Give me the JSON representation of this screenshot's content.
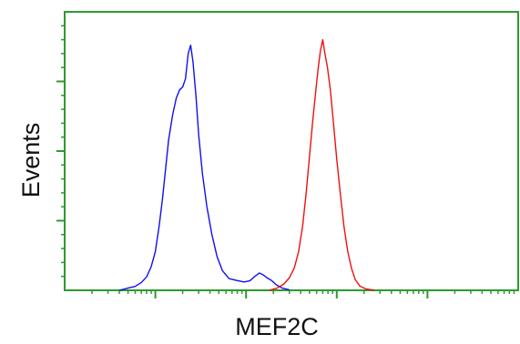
{
  "chart_data": {
    "type": "line",
    "title": "",
    "xlabel": "MEF2C",
    "ylabel": "Events",
    "x_scale": "log",
    "xlim": [
      1,
      100000
    ],
    "ylim": [
      0,
      1000
    ],
    "x_major_ticks": [
      10,
      100,
      1000,
      10000
    ],
    "y_major_ticks": [
      250,
      500,
      750
    ],
    "grid": false,
    "legend": "none",
    "colors": {
      "axis": "#2e9a2e",
      "plot_border": "#2e9a2e"
    },
    "series": [
      {
        "color": "#1010ee",
        "points": [
          [
            4.0,
            0
          ],
          [
            5.0,
            8
          ],
          [
            6.0,
            14
          ],
          [
            7.0,
            28
          ],
          [
            8.0,
            48
          ],
          [
            9.0,
            85
          ],
          [
            10.0,
            140
          ],
          [
            11.0,
            230
          ],
          [
            12.0,
            330
          ],
          [
            13.0,
            440
          ],
          [
            14.0,
            540
          ],
          [
            15.5,
            630
          ],
          [
            17.0,
            690
          ],
          [
            18.5,
            720
          ],
          [
            20.0,
            730
          ],
          [
            21.5,
            760
          ],
          [
            23.0,
            850
          ],
          [
            24.5,
            880
          ],
          [
            26.0,
            820
          ],
          [
            28.0,
            700
          ],
          [
            30.0,
            560
          ],
          [
            33.0,
            420
          ],
          [
            37.0,
            300
          ],
          [
            42.0,
            200
          ],
          [
            48.0,
            120
          ],
          [
            55.0,
            70
          ],
          [
            65.0,
            42
          ],
          [
            80.0,
            35
          ],
          [
            95.0,
            30
          ],
          [
            110.0,
            34
          ],
          [
            125.0,
            50
          ],
          [
            140.0,
            62
          ],
          [
            155.0,
            55
          ],
          [
            170.0,
            45
          ],
          [
            190.0,
            36
          ],
          [
            215.0,
            20
          ],
          [
            250.0,
            8
          ],
          [
            300.0,
            2
          ]
        ]
      },
      {
        "color": "#ee1010",
        "points": [
          [
            180.0,
            0
          ],
          [
            220.0,
            8
          ],
          [
            260.0,
            22
          ],
          [
            300.0,
            45
          ],
          [
            340.0,
            80
          ],
          [
            380.0,
            140
          ],
          [
            420.0,
            230
          ],
          [
            460.0,
            350
          ],
          [
            500.0,
            480
          ],
          [
            540.0,
            600
          ],
          [
            580.0,
            700
          ],
          [
            620.0,
            790
          ],
          [
            660.0,
            860
          ],
          [
            700.0,
            900
          ],
          [
            740.0,
            850
          ],
          [
            790.0,
            800
          ],
          [
            850.0,
            720
          ],
          [
            920.0,
            600
          ],
          [
            1000.0,
            470
          ],
          [
            1100.0,
            340
          ],
          [
            1200.0,
            230
          ],
          [
            1320.0,
            140
          ],
          [
            1450.0,
            80
          ],
          [
            1600.0,
            38
          ],
          [
            1800.0,
            15
          ],
          [
            2100.0,
            5
          ],
          [
            2600.0,
            0
          ]
        ]
      }
    ]
  }
}
